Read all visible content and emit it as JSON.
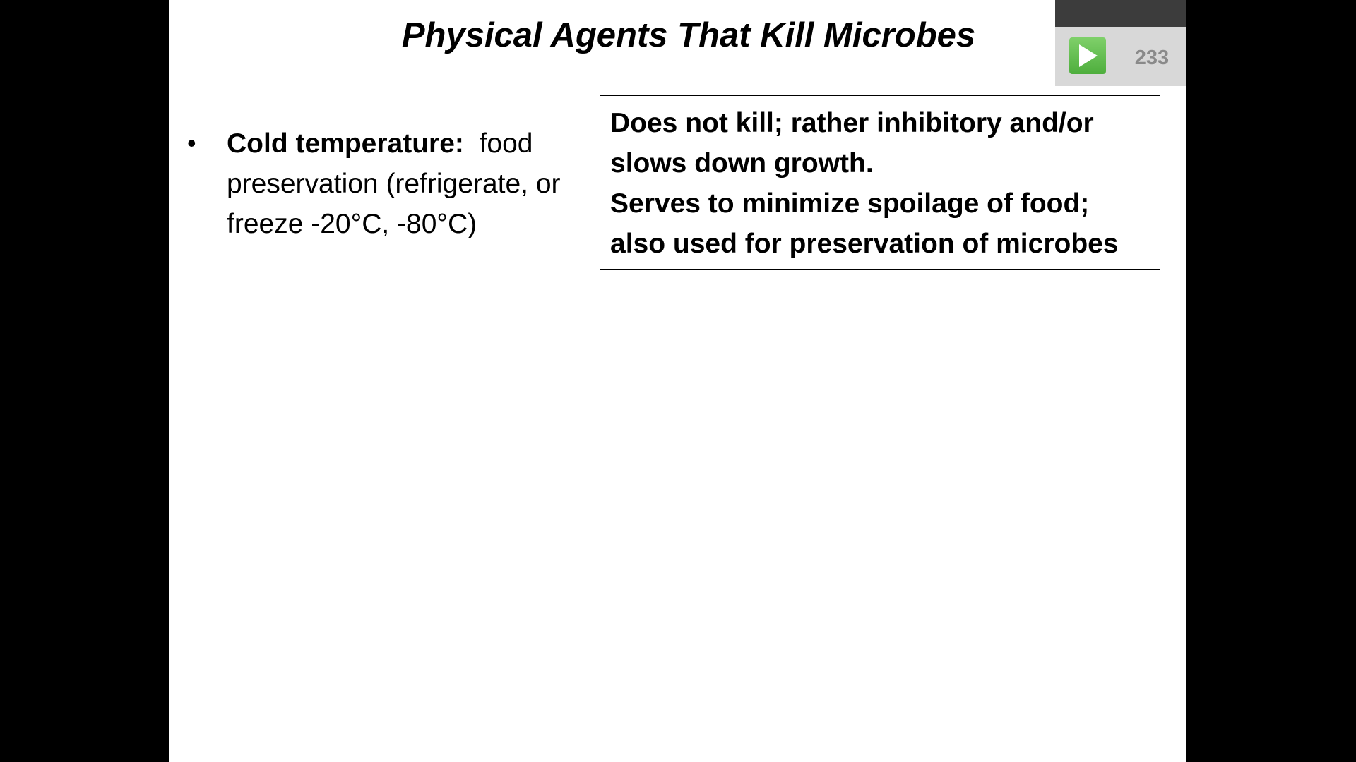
{
  "slide": {
    "title": "Physical Agents That Kill Microbes",
    "bullets": [
      {
        "term": "Cold temperature:",
        "text": "food preservation (refrigerate, or freeze -20°C, -80°C)"
      }
    ],
    "note_box": {
      "lines": [
        "Does not kill; rather inhibitory and/or",
        "slows down growth.",
        "Serves to minimize spoilage of food;",
        "also used for preservation of microbes"
      ]
    }
  },
  "player_widget": {
    "icon": "play-icon",
    "count": "233",
    "accent_color": "#5cba47"
  }
}
